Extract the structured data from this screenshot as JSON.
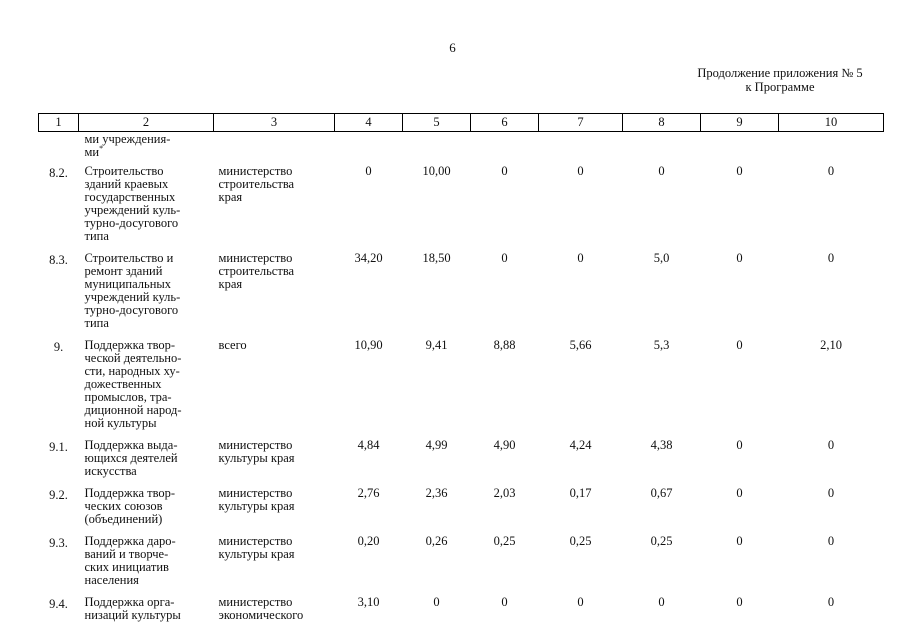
{
  "page_number": "6",
  "continuation": {
    "line1": "Продолжение приложения № 5",
    "line2": "к Программе"
  },
  "table": {
    "headers": [
      "1",
      "2",
      "3",
      "4",
      "5",
      "6",
      "7",
      "8",
      "9",
      "10"
    ],
    "rows": [
      {
        "num": "",
        "name_lines": [
          "ми учреждения-",
          "ми"
        ],
        "name_suffix": "*",
        "resp_lines": [],
        "values": [
          "",
          "",
          "",
          "",
          "",
          "",
          ""
        ]
      },
      {
        "num": "8.2.",
        "name_lines": [
          "Строительство",
          "зданий краевых",
          "государственных",
          "учреждений куль-",
          "турно-досугового",
          "типа"
        ],
        "resp_lines": [
          "министерство",
          "строительства",
          "края"
        ],
        "values": [
          "0",
          "10,00",
          "0",
          "0",
          "0",
          "0",
          "0"
        ]
      },
      {
        "num": "8.3.",
        "name_lines": [
          "Строительство и",
          "ремонт зданий",
          "муниципальных",
          "учреждений куль-",
          "турно-досугового",
          "типа"
        ],
        "resp_lines": [
          "министерство",
          "строительства",
          "края"
        ],
        "values": [
          "34,20",
          "18,50",
          "0",
          "0",
          "5,0",
          "0",
          "0"
        ]
      },
      {
        "num": "9.",
        "name_lines": [
          "Поддержка твор-",
          "ческой деятельно-",
          "сти, народных ху-",
          "дожественных",
          "промыслов, тра-",
          "диционной народ-",
          "ной культуры"
        ],
        "resp_lines": [
          "всего"
        ],
        "values": [
          "10,90",
          "9,41",
          "8,88",
          "5,66",
          "5,3",
          "0",
          "2,10"
        ]
      },
      {
        "num": "9.1.",
        "name_lines": [
          "Поддержка выда-",
          "ющихся деятелей",
          "искусства"
        ],
        "resp_lines": [
          "министерство",
          "культуры края"
        ],
        "values": [
          "4,84",
          "4,99",
          "4,90",
          "4,24",
          "4,38",
          "0",
          "0"
        ]
      },
      {
        "num": "9.2.",
        "name_lines": [
          "Поддержка твор-",
          "ческих союзов",
          "(объединений)"
        ],
        "resp_lines": [
          "министерство",
          "культуры края"
        ],
        "values": [
          "2,76",
          "2,36",
          "2,03",
          "0,17",
          "0,67",
          "0",
          "0"
        ]
      },
      {
        "num": "9.3.",
        "name_lines": [
          "Поддержка даро-",
          "ваний и творче-",
          "ских инициатив",
          "населения"
        ],
        "resp_lines": [
          "министерство",
          "культуры края"
        ],
        "values": [
          "0,20",
          "0,26",
          "0,25",
          "0,25",
          "0,25",
          "0",
          "0"
        ]
      },
      {
        "num": "9.4.",
        "name_lines": [
          "Поддержка орга-",
          "низаций культуры"
        ],
        "resp_lines": [
          "министерство",
          "экономического"
        ],
        "values": [
          "3,10",
          "0",
          "0",
          "0",
          "0",
          "0",
          "0"
        ]
      }
    ]
  }
}
